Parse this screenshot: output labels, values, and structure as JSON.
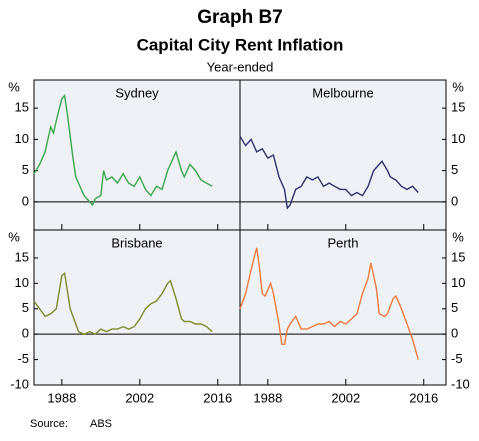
{
  "title": "Graph B7",
  "subtitle": "Capital City Rent Inflation",
  "note": "Year-ended",
  "source_label": "Source:",
  "source": "ABS",
  "chart_data": [
    {
      "type": "line",
      "title": "Sydney",
      "ylabel": "%",
      "color": "#3aa748",
      "x": [
        1983,
        1984,
        1985,
        1986,
        1986.5,
        1987,
        1988,
        1988.5,
        1989,
        1990,
        1990.5,
        1991,
        1992,
        1993,
        1993.5,
        1994,
        1995,
        1995.5,
        1996,
        1997,
        1998,
        1999,
        2000,
        2001,
        2002,
        2003,
        2004,
        2005,
        2006,
        2007,
        2008,
        2008.5,
        2009.5,
        2010,
        2011,
        2012,
        2013,
        2014,
        2015
      ],
      "values": [
        4.5,
        6,
        8,
        12,
        11,
        13,
        16.5,
        17,
        14,
        7,
        4,
        3,
        1,
        0,
        -0.5,
        0.5,
        1,
        5,
        3.5,
        4,
        3,
        4.5,
        3,
        2.5,
        4,
        2,
        1,
        2.5,
        2,
        5,
        7,
        8,
        5,
        4,
        6,
        5,
        3.5,
        3,
        2.5
      ],
      "xlim": [
        1983,
        2020
      ],
      "ylim": [
        -4.5,
        19.5
      ],
      "xticks": [
        1988,
        2002,
        2016
      ],
      "yticks": [
        0,
        5,
        10,
        15
      ]
    },
    {
      "type": "line",
      "title": "Melbourne",
      "ylabel": "%",
      "color": "#2e2f6e",
      "x": [
        1983,
        1984,
        1985,
        1986,
        1987,
        1988,
        1989,
        1990,
        1991,
        1991.5,
        1992,
        1993,
        1994,
        1995,
        1996,
        1997,
        1998,
        1999,
        2000,
        2001,
        2002,
        2003,
        2004,
        2005,
        2006,
        2007,
        2008.5,
        2009.5,
        2010,
        2011,
        2012,
        2013,
        2014,
        2015
      ],
      "values": [
        10.5,
        9,
        10,
        8,
        8.5,
        7,
        7.5,
        4,
        2,
        -1,
        -0.5,
        2,
        2.5,
        4,
        3.5,
        4,
        2.5,
        3,
        2.5,
        2,
        2,
        1,
        1.5,
        1,
        2.5,
        5,
        6.5,
        5,
        4,
        3.5,
        2.5,
        2,
        2.5,
        1.5
      ],
      "xlim": [
        1983,
        2020
      ],
      "ylim": [
        -4.5,
        19.5
      ],
      "xticks": [
        1988,
        2002,
        2016
      ],
      "yticks": [
        0,
        5,
        10,
        15
      ]
    },
    {
      "type": "line",
      "title": "Brisbane",
      "ylabel": "%",
      "color": "#7f8a2a",
      "x": [
        1983,
        1984,
        1985,
        1986,
        1987,
        1988,
        1988.5,
        1989.5,
        1990.5,
        1991,
        1992,
        1993,
        1994,
        1995,
        1996,
        1997,
        1998,
        1999,
        2000,
        2001,
        2002,
        2003,
        2004,
        2005,
        2006,
        2007,
        2007.5,
        2008.5,
        2009.5,
        2010,
        2011,
        2012,
        2013,
        2014,
        2015
      ],
      "values": [
        6.5,
        5,
        3.5,
        4,
        5,
        11.5,
        12,
        5,
        2,
        0.5,
        0,
        0.5,
        0,
        1,
        0.5,
        1,
        1,
        1.5,
        1,
        1.5,
        3,
        5,
        6,
        6.5,
        8,
        10,
        10.5,
        7,
        3,
        2.5,
        2.5,
        2,
        2,
        1.5,
        0.5
      ],
      "xlim": [
        1983,
        2020
      ],
      "ylim": [
        -10,
        20.5
      ],
      "xticks": [
        1988,
        2002,
        2016
      ],
      "yticks": [
        -10,
        -5,
        0,
        5,
        10,
        15
      ]
    },
    {
      "type": "line",
      "title": "Perth",
      "ylabel": "%",
      "color": "#f07a3a",
      "x": [
        1983,
        1984,
        1985.5,
        1986,
        1986.5,
        1987,
        1987.5,
        1988.5,
        1989,
        1990,
        1990.5,
        1991,
        1991.5,
        1992,
        1993,
        1994,
        1995,
        1996,
        1997,
        1998,
        1999,
        2000,
        2001,
        2002,
        2003,
        2004,
        2005,
        2006,
        2006.5,
        2007.5,
        2008,
        2009,
        2009.5,
        2010.5,
        2011,
        2012,
        2013,
        2014,
        2015
      ],
      "values": [
        5,
        8,
        15,
        17,
        13,
        8,
        7.5,
        10,
        8,
        2,
        -2,
        -2,
        1,
        2,
        3.5,
        1,
        1,
        1.5,
        2,
        2,
        2.5,
        1.5,
        2.5,
        2,
        3,
        4,
        8,
        11,
        14,
        9,
        4,
        3.5,
        4,
        7,
        7.5,
        5,
        2,
        -1,
        -5
      ],
      "xlim": [
        1983,
        2020
      ],
      "ylim": [
        -10,
        20.5
      ],
      "xticks": [
        1988,
        2002,
        2016
      ],
      "yticks": [
        -10,
        -5,
        0,
        5,
        10,
        15
      ]
    }
  ]
}
